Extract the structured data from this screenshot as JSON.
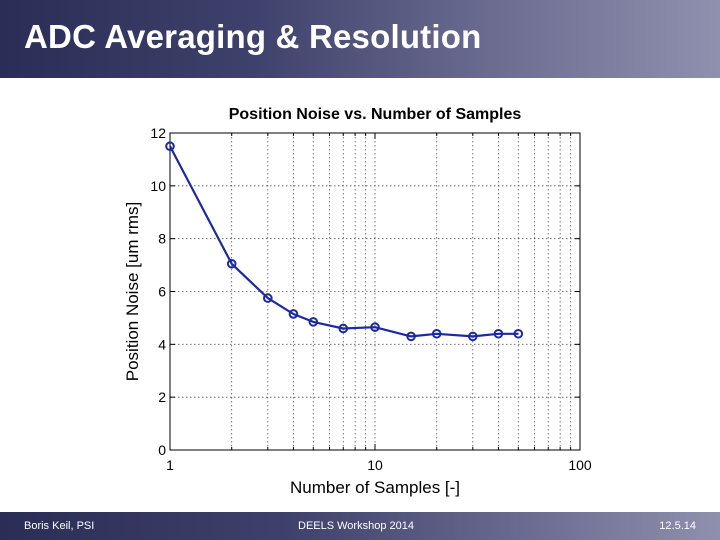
{
  "slide": {
    "title": "ADC Averaging & Resolution"
  },
  "footer": {
    "author": "Boris Keil, PSI",
    "event": "DEELS Workshop 2014",
    "date": "12.5.14"
  },
  "colors": {
    "header_gradient_start": "#2a2d55",
    "header_gradient_end": "#8f90ae",
    "series": "#1c2a9e",
    "grid": "#555555",
    "axis": "#000000"
  },
  "chart_data": {
    "type": "line",
    "title": "Position Noise vs. Number of Samples",
    "xlabel": "Number of Samples   [-]",
    "ylabel": "Position Noise   [um rms]",
    "xscale": "log",
    "xlim": [
      1,
      100
    ],
    "ylim": [
      0,
      12
    ],
    "xticks": [
      1,
      10,
      100
    ],
    "xtick_labels": [
      "1",
      "10",
      "100"
    ],
    "yticks": [
      0,
      2,
      4,
      6,
      8,
      10,
      12
    ],
    "ytick_labels": [
      "0",
      "2",
      "4",
      "6",
      "8",
      "10",
      "12"
    ],
    "grid": true,
    "marker": "circle",
    "series": [
      {
        "x": [
          1,
          2,
          3,
          4,
          5,
          7,
          10,
          15,
          20,
          30,
          40,
          50
        ],
        "y": [
          11.5,
          7.05,
          5.75,
          5.15,
          4.85,
          4.6,
          4.65,
          4.3,
          4.4,
          4.3,
          4.4,
          4.4
        ]
      }
    ]
  }
}
